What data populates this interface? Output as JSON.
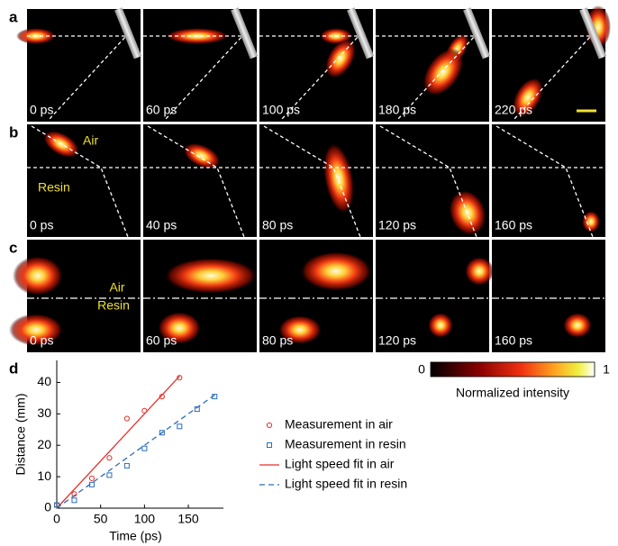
{
  "panels": [
    {
      "label": "a",
      "frames": [
        "0 ps",
        "60 ps",
        "100 ps",
        "180 ps",
        "220 ps"
      ]
    },
    {
      "label": "b",
      "frames": [
        "0 ps",
        "40 ps",
        "80  ps",
        "120 ps",
        "160 ps"
      ],
      "annotations": [
        "Air",
        "Resin"
      ]
    },
    {
      "label": "c",
      "frames": [
        "0 ps",
        "60 ps",
        "80 ps",
        "120 ps",
        "160 ps"
      ],
      "annotations": [
        "Air",
        "Resin"
      ]
    }
  ],
  "colorbar": {
    "min_label": "0",
    "max_label": "1",
    "title": "Normalized intensity"
  },
  "chart_data": {
    "type": "scatter",
    "panel_label": "d",
    "xlabel": "Time (ps)",
    "ylabel": "Distance (mm)",
    "xlim": [
      0,
      190
    ],
    "ylim": [
      0,
      47
    ],
    "xticks": [
      0,
      50,
      100,
      150
    ],
    "yticks": [
      0,
      10,
      20,
      30,
      40
    ],
    "series": [
      {
        "name": "Measurement in air",
        "color": "#e8302a",
        "marker": "circle",
        "x": [
          0,
          20,
          40,
          60,
          80,
          100,
          120,
          140
        ],
        "values": [
          1,
          4.5,
          9.5,
          16,
          28.5,
          31,
          35.5,
          41.5
        ]
      },
      {
        "name": "Measurement in resin",
        "color": "#2b6cb8",
        "marker": "square",
        "x": [
          0,
          20,
          40,
          60,
          80,
          100,
          120,
          140,
          160,
          180
        ],
        "values": [
          1,
          2.5,
          7.5,
          10.5,
          13.5,
          19,
          24,
          26,
          31.5,
          35.5
        ]
      },
      {
        "name": "Light speed fit in air",
        "color": "#e8302a",
        "type": "line",
        "style": "solid",
        "x": [
          0,
          140
        ],
        "values": [
          0,
          42
        ]
      },
      {
        "name": "Light speed fit in resin",
        "color": "#2b6cb8",
        "type": "line",
        "style": "dashed",
        "x": [
          0,
          180
        ],
        "values": [
          0,
          36
        ]
      }
    ]
  }
}
